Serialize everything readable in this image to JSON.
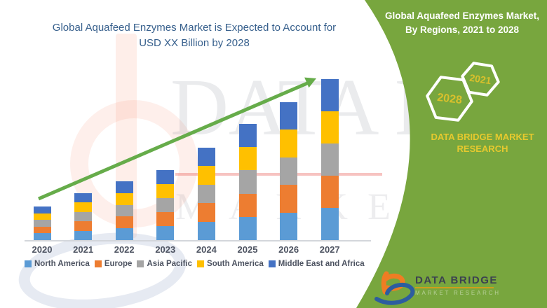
{
  "header": {
    "title_line1": "Global Aquafeed Enzymes Market is Expected to Account for",
    "title_line2": "USD XX Billion by 2028"
  },
  "chart_data": {
    "type": "bar",
    "stacked": true,
    "title": "Global Aquafeed Enzymes Market is Expected to Account for USD XX Billion by 2028",
    "categories": [
      "2020",
      "2021",
      "2022",
      "2023",
      "2024",
      "2025",
      "2026",
      "2027"
    ],
    "series": [
      {
        "name": "North America",
        "color": "#5B9BD5",
        "values": [
          9.6,
          13.4,
          16.8,
          20.0,
          26.4,
          33.2,
          39.4,
          46.0
        ]
      },
      {
        "name": "Europe",
        "color": "#ED7D31",
        "values": [
          9.6,
          13.4,
          16.8,
          20.0,
          26.4,
          33.2,
          39.4,
          46.0
        ]
      },
      {
        "name": "Asia Pacific",
        "color": "#A5A5A5",
        "values": [
          9.6,
          13.4,
          16.8,
          20.0,
          26.4,
          33.2,
          39.4,
          46.0
        ]
      },
      {
        "name": "South America",
        "color": "#FFC000",
        "values": [
          9.6,
          13.4,
          16.8,
          20.0,
          26.4,
          33.2,
          39.4,
          46.0
        ]
      },
      {
        "name": "Middle East and Africa",
        "color": "#4472C4",
        "values": [
          9.6,
          13.4,
          16.8,
          20.0,
          26.4,
          33.2,
          39.4,
          46.0
        ]
      }
    ],
    "stack_totals": [
      48,
      67,
      84,
      100,
      132,
      166,
      197,
      230
    ],
    "units": "relative (no value axis shown in figure)",
    "ylim": [
      0,
      250
    ],
    "grid": false,
    "legend_position": "bottom",
    "trend_arrow": true
  },
  "watermark": {
    "line1": "DATA BRI",
    "line2": "MARKET RE"
  },
  "right_panel": {
    "title_line1": "Global Aquafeed Enzymes Market,",
    "title_line2": "By Regions, 2021 to 2028",
    "hex_year_top": "2021",
    "hex_year_bottom": "2028",
    "brand_line1": "DATA BRIDGE MARKET",
    "brand_line2": "RESEARCH"
  },
  "logo": {
    "wordmark": "DATA BRIDGE",
    "subtitle": "MARKET RESEARCH"
  },
  "colors": {
    "panel_green": "#78a63e",
    "arrow_green": "#66ac4a",
    "title_blue": "#365f8c",
    "axis_text": "#4d5361",
    "brand_yellow": "#e6c92e",
    "hex_year_yellow": "#d9c02c",
    "logo_orange": "#ef7d23",
    "logo_blue": "#2d5d9f"
  }
}
